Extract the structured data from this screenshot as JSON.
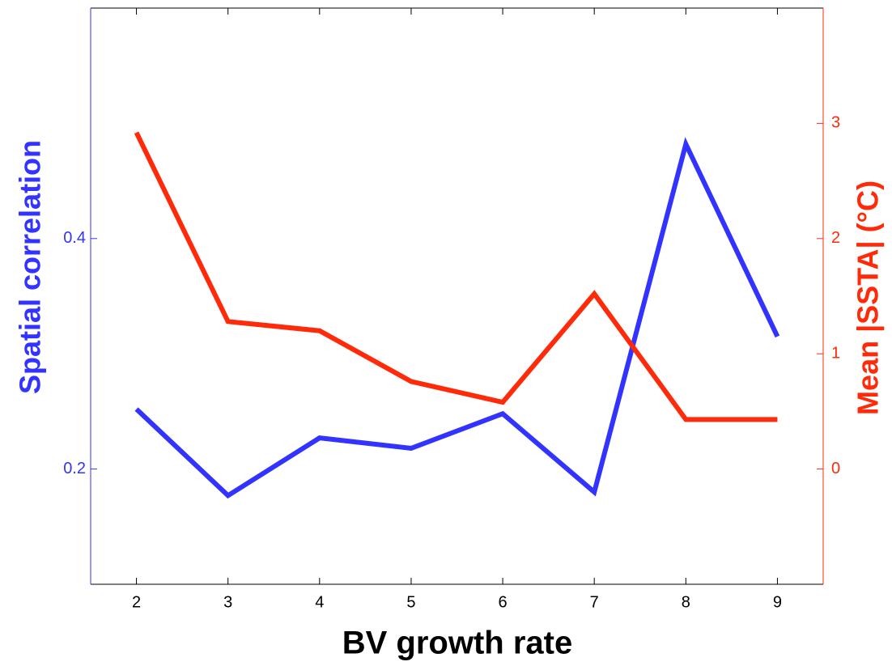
{
  "chart_data": {
    "type": "line",
    "x_label": "BV growth rate",
    "y_label": "Spatial correlation",
    "y2_label": "Mean |SSTA| (°C)",
    "x": [
      2,
      3,
      4,
      5,
      6,
      7,
      8,
      9
    ],
    "xlim": [
      1.5,
      9.5
    ],
    "xticks": [
      2,
      3,
      4,
      5,
      6,
      7,
      8,
      9
    ],
    "ylim": [
      0.1,
      0.6
    ],
    "yticks": [
      0.2,
      0.4
    ],
    "y2lim": [
      -1,
      4
    ],
    "y2ticks": [
      0,
      1,
      2,
      3
    ],
    "series": [
      {
        "color": "#3333ff",
        "values": [
          0.252,
          0.177,
          0.227,
          0.218,
          0.248,
          0.18,
          0.482,
          0.315
        ]
      },
      {
        "color": "#ff2a0a",
        "axis": "y2",
        "values": [
          2.92,
          1.28,
          1.2,
          0.76,
          0.58,
          1.52,
          0.43,
          0.43
        ]
      }
    ]
  }
}
